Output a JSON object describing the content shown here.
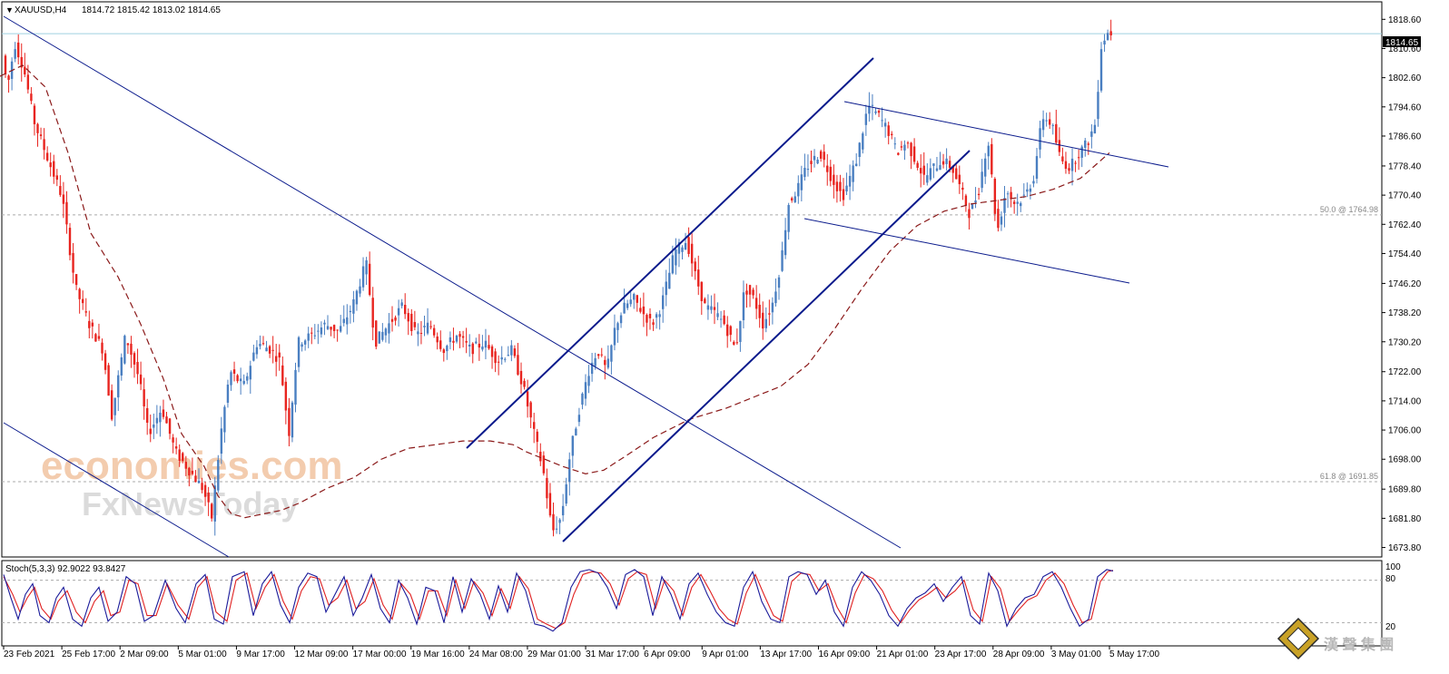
{
  "header": {
    "symbol": "XAUUSD,H4",
    "ohlc": "1814.72 1815.42 1813.02 1814.65"
  },
  "watermark": {
    "line1": "economies.com",
    "line2": "FxNewsToday"
  },
  "logo": {
    "text": "漢 聲 集 團"
  },
  "colors": {
    "bull": "#4a7fc1",
    "bear": "#e8241f",
    "trendline": "#0a1a8c",
    "ma": "#8b1a1a",
    "stoch_main": "#1a1a9a",
    "stoch_signal": "#e02020",
    "grid_dashed": "#aaaaaa",
    "price_line": "#9fd0e0"
  },
  "stoch": {
    "label": "Stoch(5,3,3) 92.9022 93.8427",
    "scale_100": "100",
    "scale_80": "80",
    "scale_20": "20"
  },
  "chart_data": {
    "type": "candlestick",
    "symbol": "XAUUSD",
    "timeframe": "H4",
    "ylim": [
      1671.2,
      1823.4
    ],
    "y_ticks": [
      "1818.60",
      "1810.60",
      "1802.60",
      "1794.60",
      "1786.60",
      "1778.40",
      "1770.40",
      "1762.40",
      "1754.40",
      "1746.20",
      "1738.20",
      "1730.20",
      "1722.00",
      "1714.00",
      "1706.00",
      "1698.00",
      "1689.80",
      "1681.80",
      "1673.80"
    ],
    "x_ticks": [
      "23 Feb 2021",
      "25 Feb 17:00",
      "2 Mar 09:00",
      "5 Mar 01:00",
      "9 Mar 17:00",
      "12 Mar 09:00",
      "17 Mar 00:00",
      "19 Mar 16:00",
      "24 Mar 08:00",
      "29 Mar 01:00",
      "31 Mar 17:00",
      "6 Apr 09:00",
      "9 Apr 01:00",
      "13 Apr 17:00",
      "16 Apr 09:00",
      "21 Apr 01:00",
      "23 Apr 17:00",
      "28 Apr 09:00",
      "3 May 01:00",
      "5 May 17:00"
    ],
    "current_price": "1814.65",
    "fib_levels": [
      {
        "label": "50.0 @ 1764.98",
        "value": 1764.98
      },
      {
        "label": "61.8 @ 1691.85",
        "value": 1691.85
      }
    ],
    "price_path": [
      [
        0,
        1815
      ],
      [
        10,
        1800
      ],
      [
        18,
        1812
      ],
      [
        28,
        1805
      ],
      [
        40,
        1790
      ],
      [
        55,
        1780
      ],
      [
        70,
        1770
      ],
      [
        85,
        1745
      ],
      [
        100,
        1735
      ],
      [
        115,
        1728
      ],
      [
        125,
        1710
      ],
      [
        140,
        1732
      ],
      [
        155,
        1720
      ],
      [
        165,
        1705
      ],
      [
        180,
        1712
      ],
      [
        195,
        1700
      ],
      [
        210,
        1695
      ],
      [
        225,
        1690
      ],
      [
        235,
        1682
      ],
      [
        245,
        1705
      ],
      [
        255,
        1722
      ],
      [
        270,
        1718
      ],
      [
        285,
        1730
      ],
      [
        300,
        1728
      ],
      [
        310,
        1725
      ],
      [
        320,
        1705
      ],
      [
        330,
        1730
      ],
      [
        345,
        1732
      ],
      [
        360,
        1735
      ],
      [
        375,
        1733
      ],
      [
        390,
        1740
      ],
      [
        405,
        1752
      ],
      [
        415,
        1730
      ],
      [
        430,
        1735
      ],
      [
        445,
        1740
      ],
      [
        460,
        1732
      ],
      [
        475,
        1735
      ],
      [
        490,
        1728
      ],
      [
        505,
        1732
      ],
      [
        520,
        1728
      ],
      [
        535,
        1730
      ],
      [
        550,
        1725
      ],
      [
        565,
        1728
      ],
      [
        578,
        1718
      ],
      [
        590,
        1705
      ],
      [
        600,
        1695
      ],
      [
        610,
        1678
      ],
      [
        620,
        1682
      ],
      [
        630,
        1700
      ],
      [
        640,
        1712
      ],
      [
        650,
        1722
      ],
      [
        660,
        1728
      ],
      [
        670,
        1722
      ],
      [
        680,
        1735
      ],
      [
        690,
        1740
      ],
      [
        700,
        1742
      ],
      [
        710,
        1738
      ],
      [
        720,
        1735
      ],
      [
        730,
        1740
      ],
      [
        745,
        1755
      ],
      [
        758,
        1758
      ],
      [
        768,
        1748
      ],
      [
        778,
        1740
      ],
      [
        790,
        1738
      ],
      [
        800,
        1735
      ],
      [
        812,
        1728
      ],
      [
        822,
        1745
      ],
      [
        832,
        1742
      ],
      [
        842,
        1735
      ],
      [
        852,
        1740
      ],
      [
        862,
        1752
      ],
      [
        870,
        1768
      ],
      [
        880,
        1772
      ],
      [
        890,
        1778
      ],
      [
        905,
        1782
      ],
      [
        918,
        1775
      ],
      [
        930,
        1770
      ],
      [
        945,
        1780
      ],
      [
        958,
        1795
      ],
      [
        970,
        1792
      ],
      [
        980,
        1788
      ],
      [
        990,
        1782
      ],
      [
        1000,
        1785
      ],
      [
        1010,
        1780
      ],
      [
        1020,
        1775
      ],
      [
        1030,
        1778
      ],
      [
        1040,
        1780
      ],
      [
        1050,
        1778
      ],
      [
        1060,
        1772
      ],
      [
        1070,
        1765
      ],
      [
        1080,
        1772
      ],
      [
        1090,
        1786
      ],
      [
        1100,
        1760
      ],
      [
        1110,
        1772
      ],
      [
        1120,
        1768
      ],
      [
        1130,
        1770
      ],
      [
        1140,
        1775
      ],
      [
        1150,
        1792
      ],
      [
        1160,
        1790
      ],
      [
        1170,
        1780
      ],
      [
        1180,
        1778
      ],
      [
        1190,
        1782
      ],
      [
        1200,
        1785
      ],
      [
        1208,
        1790
      ],
      [
        1215,
        1812
      ],
      [
        1222,
        1815
      ]
    ],
    "ma_path": [
      [
        0,
        1803
      ],
      [
        25,
        1806
      ],
      [
        50,
        1800
      ],
      [
        75,
        1782
      ],
      [
        100,
        1760
      ],
      [
        130,
        1748
      ],
      [
        155,
        1735
      ],
      [
        180,
        1720
      ],
      [
        200,
        1705
      ],
      [
        225,
        1696
      ],
      [
        240,
        1688
      ],
      [
        255,
        1683
      ],
      [
        270,
        1682
      ],
      [
        290,
        1683
      ],
      [
        310,
        1684
      ],
      [
        330,
        1686
      ],
      [
        360,
        1690
      ],
      [
        390,
        1693
      ],
      [
        420,
        1698
      ],
      [
        450,
        1701
      ],
      [
        480,
        1702
      ],
      [
        510,
        1703
      ],
      [
        540,
        1703
      ],
      [
        565,
        1702
      ],
      [
        580,
        1700
      ],
      [
        600,
        1698
      ],
      [
        620,
        1696
      ],
      [
        645,
        1694
      ],
      [
        665,
        1695
      ],
      [
        690,
        1699
      ],
      [
        720,
        1704
      ],
      [
        760,
        1709
      ],
      [
        800,
        1712
      ],
      [
        830,
        1715
      ],
      [
        860,
        1718
      ],
      [
        890,
        1724
      ],
      [
        920,
        1734
      ],
      [
        950,
        1745
      ],
      [
        980,
        1755
      ],
      [
        1010,
        1762
      ],
      [
        1040,
        1766
      ],
      [
        1070,
        1768
      ],
      [
        1100,
        1769
      ],
      [
        1130,
        1770
      ],
      [
        1160,
        1772
      ],
      [
        1190,
        1775
      ],
      [
        1222,
        1782
      ]
    ],
    "stoch_main_path": [
      [
        0,
        88
      ],
      [
        8,
        55
      ],
      [
        16,
        25
      ],
      [
        24,
        60
      ],
      [
        32,
        75
      ],
      [
        40,
        30
      ],
      [
        50,
        20
      ],
      [
        58,
        55
      ],
      [
        66,
        70
      ],
      [
        76,
        25
      ],
      [
        86,
        15
      ],
      [
        96,
        55
      ],
      [
        105,
        70
      ],
      [
        115,
        22
      ],
      [
        125,
        35
      ],
      [
        135,
        85
      ],
      [
        145,
        75
      ],
      [
        155,
        22
      ],
      [
        165,
        30
      ],
      [
        178,
        80
      ],
      [
        190,
        40
      ],
      [
        200,
        20
      ],
      [
        212,
        75
      ],
      [
        222,
        88
      ],
      [
        232,
        25
      ],
      [
        242,
        18
      ],
      [
        252,
        85
      ],
      [
        265,
        92
      ],
      [
        275,
        30
      ],
      [
        285,
        75
      ],
      [
        295,
        92
      ],
      [
        305,
        45
      ],
      [
        315,
        20
      ],
      [
        325,
        70
      ],
      [
        335,
        90
      ],
      [
        345,
        85
      ],
      [
        355,
        35
      ],
      [
        365,
        60
      ],
      [
        375,
        85
      ],
      [
        385,
        30
      ],
      [
        395,
        55
      ],
      [
        405,
        88
      ],
      [
        415,
        40
      ],
      [
        425,
        20
      ],
      [
        435,
        80
      ],
      [
        445,
        55
      ],
      [
        455,
        18
      ],
      [
        465,
        70
      ],
      [
        475,
        65
      ],
      [
        485,
        20
      ],
      [
        495,
        85
      ],
      [
        505,
        35
      ],
      [
        515,
        82
      ],
      [
        525,
        60
      ],
      [
        535,
        25
      ],
      [
        545,
        72
      ],
      [
        555,
        35
      ],
      [
        565,
        90
      ],
      [
        575,
        65
      ],
      [
        585,
        18
      ],
      [
        595,
        15
      ],
      [
        605,
        8
      ],
      [
        615,
        20
      ],
      [
        625,
        70
      ],
      [
        635,
        92
      ],
      [
        645,
        95
      ],
      [
        655,
        90
      ],
      [
        665,
        70
      ],
      [
        675,
        40
      ],
      [
        685,
        88
      ],
      [
        695,
        95
      ],
      [
        705,
        85
      ],
      [
        715,
        30
      ],
      [
        725,
        85
      ],
      [
        735,
        60
      ],
      [
        745,
        25
      ],
      [
        755,
        75
      ],
      [
        765,
        90
      ],
      [
        775,
        60
      ],
      [
        785,
        35
      ],
      [
        795,
        20
      ],
      [
        805,
        15
      ],
      [
        815,
        70
      ],
      [
        825,
        92
      ],
      [
        835,
        50
      ],
      [
        845,
        25
      ],
      [
        855,
        20
      ],
      [
        865,
        85
      ],
      [
        875,
        92
      ],
      [
        885,
        88
      ],
      [
        895,
        60
      ],
      [
        905,
        80
      ],
      [
        915,
        35
      ],
      [
        925,
        15
      ],
      [
        935,
        70
      ],
      [
        945,
        92
      ],
      [
        955,
        80
      ],
      [
        965,
        60
      ],
      [
        975,
        30
      ],
      [
        985,
        15
      ],
      [
        995,
        40
      ],
      [
        1005,
        55
      ],
      [
        1015,
        62
      ],
      [
        1025,
        75
      ],
      [
        1035,
        50
      ],
      [
        1045,
        70
      ],
      [
        1055,
        85
      ],
      [
        1065,
        30
      ],
      [
        1075,
        18
      ],
      [
        1085,
        90
      ],
      [
        1095,
        65
      ],
      [
        1105,
        15
      ],
      [
        1115,
        40
      ],
      [
        1125,
        55
      ],
      [
        1135,
        60
      ],
      [
        1145,
        85
      ],
      [
        1155,
        92
      ],
      [
        1165,
        70
      ],
      [
        1175,
        40
      ],
      [
        1185,
        15
      ],
      [
        1195,
        25
      ],
      [
        1205,
        85
      ],
      [
        1215,
        95
      ],
      [
        1222,
        93
      ]
    ],
    "stoch_signal_path": [
      [
        0,
        85
      ],
      [
        10,
        60
      ],
      [
        18,
        35
      ],
      [
        26,
        55
      ],
      [
        34,
        70
      ],
      [
        42,
        40
      ],
      [
        52,
        25
      ],
      [
        60,
        50
      ],
      [
        70,
        65
      ],
      [
        80,
        35
      ],
      [
        90,
        20
      ],
      [
        100,
        50
      ],
      [
        110,
        65
      ],
      [
        118,
        30
      ],
      [
        128,
        35
      ],
      [
        138,
        80
      ],
      [
        148,
        75
      ],
      [
        158,
        30
      ],
      [
        168,
        30
      ],
      [
        180,
        75
      ],
      [
        192,
        45
      ],
      [
        204,
        25
      ],
      [
        214,
        70
      ],
      [
        224,
        85
      ],
      [
        234,
        35
      ],
      [
        246,
        22
      ],
      [
        256,
        80
      ],
      [
        268,
        90
      ],
      [
        278,
        40
      ],
      [
        288,
        70
      ],
      [
        298,
        88
      ],
      [
        308,
        50
      ],
      [
        318,
        25
      ],
      [
        328,
        65
      ],
      [
        338,
        85
      ],
      [
        348,
        82
      ],
      [
        358,
        45
      ],
      [
        368,
        55
      ],
      [
        378,
        80
      ],
      [
        388,
        40
      ],
      [
        398,
        50
      ],
      [
        408,
        82
      ],
      [
        418,
        45
      ],
      [
        428,
        25
      ],
      [
        438,
        75
      ],
      [
        448,
        60
      ],
      [
        458,
        25
      ],
      [
        468,
        65
      ],
      [
        478,
        65
      ],
      [
        488,
        30
      ],
      [
        498,
        80
      ],
      [
        508,
        40
      ],
      [
        518,
        78
      ],
      [
        528,
        62
      ],
      [
        538,
        30
      ],
      [
        548,
        68
      ],
      [
        558,
        40
      ],
      [
        568,
        85
      ],
      [
        578,
        68
      ],
      [
        588,
        25
      ],
      [
        598,
        18
      ],
      [
        608,
        12
      ],
      [
        618,
        20
      ],
      [
        628,
        60
      ],
      [
        638,
        88
      ],
      [
        648,
        92
      ],
      [
        658,
        90
      ],
      [
        668,
        75
      ],
      [
        678,
        45
      ],
      [
        688,
        82
      ],
      [
        698,
        92
      ],
      [
        708,
        88
      ],
      [
        718,
        40
      ],
      [
        728,
        80
      ],
      [
        738,
        65
      ],
      [
        748,
        30
      ],
      [
        758,
        70
      ],
      [
        768,
        88
      ],
      [
        778,
        65
      ],
      [
        788,
        40
      ],
      [
        798,
        25
      ],
      [
        808,
        18
      ],
      [
        818,
        62
      ],
      [
        828,
        88
      ],
      [
        838,
        58
      ],
      [
        848,
        30
      ],
      [
        858,
        22
      ],
      [
        868,
        78
      ],
      [
        878,
        90
      ],
      [
        888,
        88
      ],
      [
        898,
        65
      ],
      [
        908,
        75
      ],
      [
        918,
        42
      ],
      [
        928,
        20
      ],
      [
        938,
        62
      ],
      [
        948,
        88
      ],
      [
        958,
        82
      ],
      [
        968,
        65
      ],
      [
        978,
        38
      ],
      [
        988,
        20
      ],
      [
        998,
        38
      ],
      [
        1008,
        52
      ],
      [
        1018,
        60
      ],
      [
        1028,
        70
      ],
      [
        1038,
        55
      ],
      [
        1048,
        65
      ],
      [
        1058,
        80
      ],
      [
        1068,
        38
      ],
      [
        1078,
        22
      ],
      [
        1088,
        85
      ],
      [
        1098,
        68
      ],
      [
        1108,
        22
      ],
      [
        1118,
        38
      ],
      [
        1128,
        52
      ],
      [
        1138,
        58
      ],
      [
        1148,
        80
      ],
      [
        1158,
        90
      ],
      [
        1168,
        75
      ],
      [
        1178,
        45
      ],
      [
        1188,
        20
      ],
      [
        1198,
        25
      ],
      [
        1208,
        78
      ],
      [
        1216,
        92
      ],
      [
        1222,
        94
      ]
    ]
  }
}
